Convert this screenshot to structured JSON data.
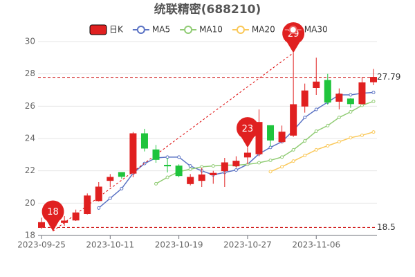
{
  "chart_data": {
    "type": "candlestick",
    "title": "统联精密(688210)",
    "categories": [
      "2023-09-25",
      null,
      null,
      null,
      null,
      null,
      "2023-10-11",
      null,
      null,
      null,
      null,
      null,
      "2023-10-19",
      null,
      null,
      null,
      null,
      null,
      "2023-10-27",
      null,
      null,
      null,
      null,
      null,
      "2023-11-06",
      null,
      null,
      null,
      null,
      null
    ],
    "ylim": [
      18,
      30
    ],
    "yticks": [
      18,
      20,
      22,
      24,
      26,
      28,
      30
    ],
    "grid": true,
    "legend": "top",
    "series": [
      {
        "name": "日K",
        "type": "candlestick",
        "up_color": "#e02020",
        "down_color": "#1fc43c",
        "open": [
          18.5,
          18.6,
          18.8,
          18.95,
          19.35,
          20.15,
          21.4,
          21.9,
          21.85,
          24.3,
          23.3,
          22.35,
          22.3,
          21.2,
          21.4,
          21.75,
          22.0,
          22.3,
          22.85,
          23.05,
          24.8,
          23.8,
          24.2,
          26.0,
          27.15,
          27.6,
          26.3,
          26.45,
          26.15,
          27.5
        ],
        "high": [
          19.1,
          19.0,
          19.2,
          19.6,
          20.6,
          21.3,
          21.8,
          21.9,
          24.4,
          24.6,
          23.6,
          22.8,
          22.4,
          21.8,
          22.2,
          22.0,
          22.8,
          22.9,
          23.43,
          25.8,
          24.8,
          24.8,
          29.3,
          27.4,
          29.0,
          28.0,
          27.1,
          26.5,
          27.8,
          28.3
        ],
        "low": [
          18.4,
          18.27,
          18.6,
          18.9,
          19.3,
          20.1,
          21.0,
          21.5,
          21.6,
          23.2,
          22.5,
          21.9,
          21.6,
          21.1,
          21.0,
          21.2,
          21.0,
          22.2,
          22.4,
          22.9,
          23.5,
          23.7,
          24.1,
          25.6,
          26.7,
          26.1,
          25.8,
          25.9,
          26.1,
          27.3
        ],
        "close": [
          18.8,
          18.8,
          18.9,
          19.4,
          20.45,
          21.0,
          21.6,
          21.65,
          24.3,
          23.4,
          22.7,
          22.3,
          21.7,
          21.6,
          21.75,
          21.85,
          22.5,
          22.6,
          23.1,
          25.0,
          23.9,
          24.4,
          26.1,
          26.95,
          27.5,
          26.25,
          26.75,
          26.15,
          27.45,
          27.79
        ],
        "high_labels": [
          null,
          null,
          null,
          null,
          null,
          null,
          null,
          null,
          null,
          null,
          null,
          null,
          null,
          null,
          null,
          null,
          null,
          null,
          "23",
          null,
          null,
          null,
          "29",
          null,
          null,
          null,
          null,
          null,
          null,
          null
        ],
        "low_labels": [
          null,
          "18",
          null,
          null,
          null,
          null,
          null,
          null,
          null,
          null,
          null,
          null,
          null,
          null,
          null,
          null,
          null,
          null,
          null,
          null,
          null,
          null,
          null,
          null,
          null,
          null,
          null,
          null,
          null,
          null
        ]
      },
      {
        "name": "MA5",
        "color": "#5b73c4",
        "values": [
          null,
          null,
          null,
          null,
          null,
          19.7,
          20.3,
          20.9,
          21.85,
          22.45,
          22.8,
          22.85,
          22.85,
          22.3,
          22.0,
          21.75,
          21.9,
          22.05,
          22.4,
          23.05,
          23.45,
          23.8,
          24.5,
          25.3,
          25.8,
          26.25,
          26.7,
          26.7,
          26.8,
          26.85
        ]
      },
      {
        "name": "MA10",
        "color": "#91cc75",
        "values": [
          null,
          null,
          null,
          null,
          null,
          null,
          null,
          null,
          null,
          null,
          21.2,
          21.6,
          21.95,
          22.1,
          22.25,
          22.3,
          22.35,
          22.35,
          22.4,
          22.5,
          22.65,
          22.85,
          23.3,
          23.85,
          24.45,
          24.8,
          25.3,
          25.65,
          26.05,
          26.3
        ]
      },
      {
        "name": "MA20",
        "color": "#fac858",
        "values": [
          null,
          null,
          null,
          null,
          null,
          null,
          null,
          null,
          null,
          null,
          null,
          null,
          null,
          null,
          null,
          null,
          null,
          null,
          null,
          null,
          21.95,
          22.25,
          22.6,
          22.95,
          23.3,
          23.55,
          23.8,
          24.05,
          24.2,
          24.4
        ]
      },
      {
        "name": "MA30",
        "color": "#ee6666",
        "values": [
          null,
          null,
          null,
          null,
          null,
          null,
          null,
          null,
          null,
          null,
          null,
          null,
          null,
          null,
          null,
          null,
          null,
          null,
          null,
          null,
          null,
          null,
          null,
          null,
          null,
          null,
          null,
          null,
          null,
          null
        ]
      }
    ],
    "hlines": [
      {
        "value": 27.79,
        "label": "27.79"
      },
      {
        "value": 18.5,
        "label": "18.5"
      }
    ]
  }
}
